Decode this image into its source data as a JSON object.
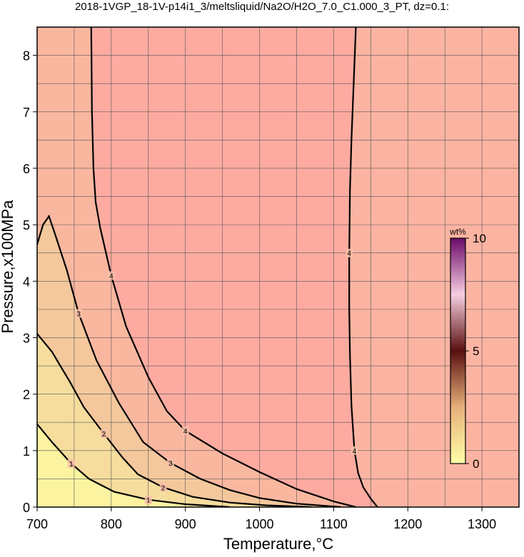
{
  "chart_data": {
    "type": "contour",
    "title": "2018-1VGP_18-1V-p14i1_3/meltsliquid/Na2O/H2O_7.0_C1.000_3_PT, dz=0.1:",
    "x_label": "Temperature,°C",
    "y_label": "Pressure,x100MPa",
    "xlim": [
      700,
      1350
    ],
    "ylim": [
      0,
      8.5
    ],
    "xticks": [
      700,
      800,
      900,
      1000,
      1100,
      1200,
      1300
    ],
    "yticks": [
      0,
      1,
      2,
      3,
      4,
      5,
      6,
      7,
      8
    ],
    "xgrid": [
      700,
      750,
      800,
      850,
      900,
      950,
      1000,
      1050,
      1100,
      1150,
      1200,
      1250,
      1300,
      1350
    ],
    "ygrid": [
      0,
      0.5,
      1,
      1.5,
      2,
      2.5,
      3,
      3.5,
      4,
      4.5,
      5,
      5.5,
      6,
      6.5,
      7,
      7.5,
      8,
      8.5
    ],
    "contours": [
      {
        "level": 4,
        "x": [
          1130,
          1127,
          1124,
          1122,
          1121,
          1121,
          1122,
          1124,
          1128,
          1133,
          1140,
          1150,
          1159
        ],
        "y": [
          8.5,
          7.5,
          6.5,
          5.6,
          4.5,
          3.5,
          2.7,
          1.8,
          1.0,
          0.6,
          0.35,
          0.15,
          0
        ]
      },
      {
        "level": 4,
        "x": [
          773,
          774,
          776,
          779,
          785,
          800,
          820,
          850,
          875,
          900,
          950,
          1000,
          1050,
          1100,
          1130
        ],
        "y": [
          8.5,
          7.0,
          6.0,
          5.4,
          4.95,
          4.1,
          3.2,
          2.3,
          1.7,
          1.35,
          0.95,
          0.62,
          0.32,
          0.1,
          0
        ]
      },
      {
        "level": 3,
        "x": [
          700,
          708,
          716,
          725,
          740,
          756,
          780,
          810,
          843,
          880,
          920,
          960,
          1000,
          1050,
          1110
        ],
        "y": [
          4.65,
          5.0,
          5.15,
          4.8,
          4.2,
          3.43,
          2.6,
          1.85,
          1.15,
          0.78,
          0.5,
          0.3,
          0.16,
          0.06,
          0
        ]
      },
      {
        "level": 2,
        "x": [
          700,
          720,
          745,
          763,
          790,
          815,
          836,
          870,
          910,
          960,
          1010,
          1070
        ],
        "y": [
          3.07,
          2.75,
          2.2,
          1.77,
          1.3,
          0.88,
          0.58,
          0.35,
          0.18,
          0.08,
          0.03,
          0
        ]
      },
      {
        "level": 1,
        "x": [
          700,
          720,
          746,
          770,
          804,
          850,
          900,
          960
        ],
        "y": [
          1.47,
          1.15,
          0.77,
          0.5,
          0.27,
          0.13,
          0.05,
          0
        ]
      }
    ],
    "colorbar": {
      "label": "wt%",
      "lim": [
        0,
        10
      ],
      "ticks": [
        0,
        5,
        10
      ]
    }
  }
}
